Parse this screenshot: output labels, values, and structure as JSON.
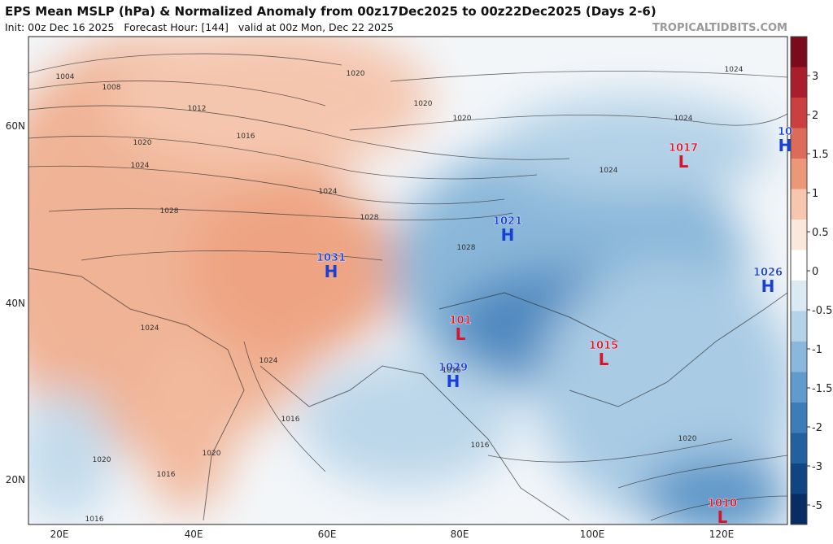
{
  "header": {
    "title": "EPS Mean MSLP (hPa) & Normalized Anomaly from 00z17Dec2025 to 00z22Dec2025 (Days 2-6)",
    "subtitle": "Init: 00z Dec 16 2025   Forecast Hour: [144]   valid at 00z Mon, Dec 22 2025",
    "credit": "TROPICALTIDBITS.COM"
  },
  "map": {
    "lat_labels": [
      "60N",
      "40N",
      "20N"
    ],
    "lon_labels": [
      "20E",
      "40E",
      "60E",
      "80E",
      "100E",
      "120E"
    ],
    "centers": [
      {
        "kind": "H",
        "value": "1031"
      },
      {
        "kind": "H",
        "value": "1021"
      },
      {
        "kind": "H",
        "value": "1026"
      },
      {
        "kind": "H",
        "value": "1029"
      },
      {
        "kind": "H",
        "value": "10"
      },
      {
        "kind": "L",
        "value": "1017"
      },
      {
        "kind": "L",
        "value": "101"
      },
      {
        "kind": "L",
        "value": "1015"
      },
      {
        "kind": "L",
        "value": "1010"
      }
    ],
    "isobar_labels": [
      "1004",
      "1008",
      "1012",
      "1016",
      "1020",
      "1024",
      "1020",
      "1028",
      "1024",
      "1028",
      "1024",
      "1020",
      "1024",
      "1024",
      "1020",
      "1016",
      "1016",
      "1020",
      "1016",
      "1020",
      "1024",
      "1024",
      "1016",
      "1020",
      "1016",
      "1028"
    ]
  },
  "colorbar": {
    "labels": [
      3,
      2,
      1.5,
      1,
      0.5,
      0,
      -0.5,
      -1,
      -1.5,
      -2,
      -3,
      -5
    ]
  }
}
